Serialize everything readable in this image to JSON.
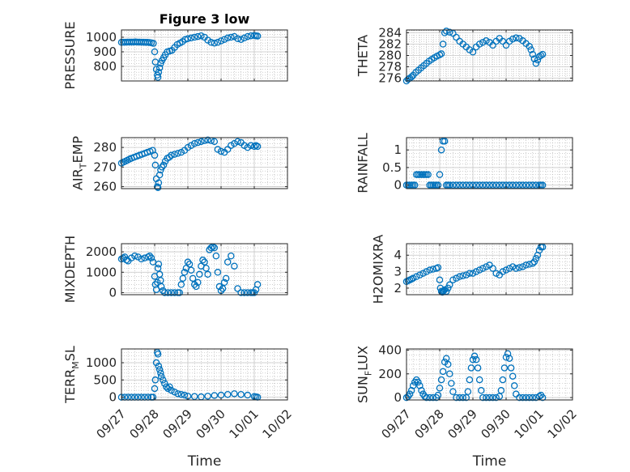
{
  "figure": {
    "title": "Figure 3 low",
    "xlabel": "Time"
  },
  "colors": {
    "marker": "#0072BD",
    "axes": "#262626",
    "grid": "#b0b0b0",
    "background": "#ffffff"
  },
  "chart_data": [
    {
      "type": "scatter",
      "title": "Figure 3 low",
      "ylabel": "PRESSURE",
      "ylim": [
        700,
        1050
      ],
      "yticks": [
        800,
        900,
        1000
      ],
      "xlim": [
        0,
        5
      ],
      "xticks": [
        "09/27",
        "09/28",
        "09/29",
        "09/30",
        "10/01",
        "10/02"
      ],
      "grid": true,
      "marker": "open-circle",
      "x": [
        0.0,
        0.06,
        0.12,
        0.18,
        0.24,
        0.3,
        0.36,
        0.42,
        0.48,
        0.54,
        0.6,
        0.66,
        0.72,
        0.78,
        0.84,
        0.9,
        0.96,
        1.0,
        1.02,
        1.05,
        1.08,
        1.1,
        1.12,
        1.15,
        1.18,
        1.22,
        1.27,
        1.32,
        1.38,
        1.45,
        1.52,
        1.6,
        1.68,
        1.76,
        1.84,
        1.92,
        2.0,
        2.1,
        2.2,
        2.3,
        2.4,
        2.5,
        2.6,
        2.7,
        2.8,
        2.9,
        3.0,
        3.1,
        3.2,
        3.3,
        3.4,
        3.5,
        3.6,
        3.7,
        3.8,
        3.9,
        4.0,
        4.05,
        4.1
      ],
      "y": [
        965,
        966,
        966,
        967,
        967,
        967,
        967,
        968,
        967,
        967,
        966,
        966,
        965,
        965,
        964,
        962,
        958,
        900,
        830,
        780,
        740,
        725,
        760,
        790,
        820,
        840,
        860,
        880,
        900,
        905,
        910,
        930,
        950,
        960,
        970,
        985,
        990,
        995,
        1000,
        1005,
        1010,
        1000,
        980,
        965,
        960,
        965,
        975,
        985,
        995,
        1000,
        1005,
        990,
        985,
        995,
        1005,
        1010,
        1012,
        1010,
        1008
      ]
    },
    {
      "type": "scatter",
      "ylabel": "THETA",
      "ylim": [
        275.5,
        284.5
      ],
      "yticks": [
        276,
        278,
        280,
        282,
        284
      ],
      "xlim": [
        0,
        5
      ],
      "xticks": [
        "09/27",
        "09/28",
        "09/29",
        "09/30",
        "10/01",
        "10/02"
      ],
      "grid": true,
      "marker": "open-circle",
      "x": [
        0.0,
        0.05,
        0.1,
        0.15,
        0.2,
        0.28,
        0.36,
        0.44,
        0.52,
        0.6,
        0.68,
        0.76,
        0.84,
        0.92,
        1.0,
        1.05,
        1.1,
        1.15,
        1.2,
        1.3,
        1.4,
        1.5,
        1.6,
        1.7,
        1.8,
        1.9,
        2.0,
        2.1,
        2.2,
        2.3,
        2.4,
        2.5,
        2.6,
        2.7,
        2.8,
        2.9,
        3.0,
        3.1,
        3.2,
        3.3,
        3.4,
        3.5,
        3.6,
        3.7,
        3.75,
        3.8,
        3.85,
        3.9,
        3.95,
        4.0,
        4.05,
        4.1
      ],
      "y": [
        275.5,
        275.8,
        276.0,
        276.2,
        276.5,
        277.0,
        277.4,
        277.8,
        278.2,
        278.6,
        279.0,
        279.3,
        279.6,
        279.9,
        280.1,
        280.3,
        282.0,
        284.0,
        284.3,
        284.1,
        283.9,
        283.2,
        282.5,
        282.0,
        281.5,
        281.0,
        280.6,
        281.5,
        282.0,
        282.3,
        282.6,
        282.3,
        281.8,
        282.5,
        283.0,
        282.5,
        281.8,
        282.5,
        282.9,
        283.1,
        283.0,
        282.6,
        282.1,
        281.6,
        281.0,
        280.2,
        279.4,
        278.6,
        279.2,
        279.8,
        280.0,
        280.2
      ]
    },
    {
      "type": "scatter",
      "ylabel": "AIR_TEMP",
      "ylim": [
        259,
        285
      ],
      "yticks": [
        260,
        270,
        280
      ],
      "xlim": [
        0,
        5
      ],
      "xticks": [
        "09/27",
        "09/28",
        "09/29",
        "09/30",
        "10/01",
        "10/02"
      ],
      "grid": true,
      "marker": "open-circle",
      "x": [
        0.0,
        0.06,
        0.12,
        0.18,
        0.24,
        0.3,
        0.38,
        0.46,
        0.54,
        0.62,
        0.7,
        0.78,
        0.86,
        0.94,
        1.0,
        1.02,
        1.05,
        1.08,
        1.1,
        1.12,
        1.15,
        1.18,
        1.22,
        1.27,
        1.32,
        1.38,
        1.44,
        1.5,
        1.6,
        1.7,
        1.8,
        1.9,
        2.0,
        2.1,
        2.2,
        2.3,
        2.4,
        2.5,
        2.6,
        2.7,
        2.8,
        2.9,
        3.0,
        3.1,
        3.2,
        3.3,
        3.4,
        3.5,
        3.6,
        3.7,
        3.8,
        3.9,
        4.0,
        4.05,
        4.1
      ],
      "y": [
        272,
        272.5,
        273,
        273.5,
        274,
        274.5,
        275,
        275.5,
        276,
        276.5,
        277,
        277.5,
        278,
        278.5,
        276,
        271,
        264,
        260,
        259.5,
        262,
        266,
        268.5,
        270,
        271,
        273,
        274.5,
        275,
        276,
        276.5,
        277,
        277.5,
        278.5,
        280,
        281,
        282,
        282.5,
        283,
        283.5,
        283.8,
        283.5,
        283,
        279,
        278,
        277.5,
        279,
        281,
        282,
        283,
        282.5,
        281,
        280,
        281,
        280.5,
        281,
        280.5
      ]
    },
    {
      "type": "scatter",
      "ylabel": "RAINFALL",
      "ylim": [
        -0.1,
        1.35
      ],
      "yticks": [
        0,
        0.5,
        1
      ],
      "xlim": [
        0,
        5
      ],
      "xticks": [
        "09/27",
        "09/28",
        "09/29",
        "09/30",
        "10/01",
        "10/02"
      ],
      "grid": true,
      "marker": "open-circle",
      "x": [
        0.0,
        0.05,
        0.1,
        0.15,
        0.2,
        0.25,
        0.3,
        0.35,
        0.4,
        0.45,
        0.5,
        0.55,
        0.6,
        0.65,
        0.7,
        0.75,
        0.8,
        0.85,
        0.9,
        0.95,
        1.0,
        1.05,
        1.1,
        1.15,
        1.2,
        1.25,
        1.3,
        1.4,
        1.5,
        1.6,
        1.7,
        1.8,
        1.9,
        2.0,
        2.1,
        2.2,
        2.3,
        2.4,
        2.5,
        2.6,
        2.7,
        2.8,
        2.9,
        3.0,
        3.1,
        3.2,
        3.3,
        3.4,
        3.5,
        3.6,
        3.7,
        3.8,
        3.9,
        4.0,
        4.05,
        4.1
      ],
      "y": [
        0,
        0,
        0,
        0,
        0,
        0,
        0.3,
        0.3,
        0.3,
        0.3,
        0.3,
        0.3,
        0.3,
        0.3,
        0,
        0,
        0,
        0,
        0,
        0,
        0.3,
        1.0,
        1.25,
        1.25,
        0,
        0,
        0,
        0,
        0,
        0,
        0,
        0,
        0,
        0,
        0,
        0,
        0,
        0,
        0,
        0,
        0,
        0,
        0,
        0,
        0,
        0,
        0,
        0,
        0,
        0,
        0,
        0,
        0,
        0,
        0,
        0
      ]
    },
    {
      "type": "scatter",
      "ylabel": "MIXDEPTH",
      "ylim": [
        -100,
        2400
      ],
      "yticks": [
        0,
        1000,
        2000
      ],
      "xlim": [
        0,
        5
      ],
      "xticks": [
        "09/27",
        "09/28",
        "09/29",
        "09/30",
        "10/01",
        "10/02"
      ],
      "grid": true,
      "marker": "open-circle",
      "x": [
        0.0,
        0.05,
        0.1,
        0.15,
        0.2,
        0.3,
        0.4,
        0.5,
        0.6,
        0.7,
        0.8,
        0.85,
        0.9,
        0.95,
        1.0,
        1.02,
        1.05,
        1.08,
        1.1,
        1.12,
        1.15,
        1.18,
        1.2,
        1.25,
        1.3,
        1.4,
        1.5,
        1.6,
        1.7,
        1.75,
        1.8,
        1.85,
        1.9,
        1.95,
        2.0,
        2.05,
        2.1,
        2.15,
        2.2,
        2.25,
        2.3,
        2.35,
        2.4,
        2.45,
        2.5,
        2.55,
        2.6,
        2.65,
        2.7,
        2.75,
        2.8,
        2.85,
        2.9,
        2.95,
        3.0,
        3.05,
        3.1,
        3.15,
        3.2,
        3.3,
        3.4,
        3.5,
        3.6,
        3.7,
        3.8,
        3.9,
        3.95,
        4.0,
        4.05,
        4.1
      ],
      "y": [
        1650,
        1700,
        1750,
        1600,
        1550,
        1700,
        1800,
        1750,
        1650,
        1700,
        1750,
        1800,
        1700,
        1500,
        800,
        400,
        150,
        500,
        1200,
        1400,
        900,
        600,
        300,
        100,
        0,
        0,
        0,
        0,
        0,
        0,
        400,
        700,
        1000,
        1200,
        1500,
        1400,
        1100,
        700,
        400,
        300,
        500,
        900,
        1300,
        1600,
        1500,
        1200,
        900,
        2100,
        2200,
        2250,
        2200,
        1800,
        1000,
        300,
        100,
        200,
        500,
        700,
        1500,
        1800,
        1300,
        200,
        0,
        0,
        0,
        0,
        0,
        0,
        150,
        400
      ]
    },
    {
      "type": "scatter",
      "ylabel": "H2OMIXRA",
      "ylim": [
        1.6,
        4.7
      ],
      "yticks": [
        2,
        3,
        4
      ],
      "xlim": [
        0,
        5
      ],
      "xticks": [
        "09/27",
        "09/28",
        "09/29",
        "09/30",
        "10/01",
        "10/02"
      ],
      "grid": true,
      "marker": "open-circle",
      "x": [
        0.0,
        0.05,
        0.1,
        0.15,
        0.2,
        0.3,
        0.4,
        0.5,
        0.6,
        0.7,
        0.8,
        0.9,
        0.95,
        1.0,
        1.02,
        1.05,
        1.08,
        1.1,
        1.12,
        1.15,
        1.2,
        1.25,
        1.3,
        1.4,
        1.5,
        1.6,
        1.7,
        1.8,
        1.9,
        2.0,
        2.1,
        2.2,
        2.3,
        2.4,
        2.5,
        2.6,
        2.7,
        2.8,
        2.9,
        3.0,
        3.1,
        3.2,
        3.3,
        3.4,
        3.5,
        3.6,
        3.7,
        3.8,
        3.85,
        3.9,
        3.95,
        4.0,
        4.05,
        4.1
      ],
      "y": [
        2.4,
        2.45,
        2.5,
        2.55,
        2.6,
        2.7,
        2.8,
        2.9,
        3.0,
        3.1,
        3.15,
        3.2,
        3.25,
        2.5,
        2.0,
        1.8,
        1.75,
        1.8,
        1.85,
        1.9,
        1.8,
        2.0,
        2.2,
        2.5,
        2.6,
        2.7,
        2.75,
        2.8,
        2.9,
        2.9,
        3.0,
        3.1,
        3.2,
        3.3,
        3.4,
        3.2,
        2.9,
        2.8,
        3.0,
        3.1,
        3.2,
        3.3,
        3.2,
        3.25,
        3.3,
        3.4,
        3.45,
        3.5,
        3.6,
        3.8,
        4.0,
        4.3,
        4.5,
        4.5
      ]
    },
    {
      "type": "scatter",
      "ylabel": "TERR_MSL",
      "ylim": [
        -80,
        1400
      ],
      "yticks": [
        0,
        500,
        1000
      ],
      "xlim": [
        0,
        5
      ],
      "xticks": [
        "09/27",
        "09/28",
        "09/29",
        "09/30",
        "10/01",
        "10/02"
      ],
      "grid": true,
      "marker": "open-circle",
      "x": [
        0.0,
        0.1,
        0.2,
        0.3,
        0.4,
        0.5,
        0.6,
        0.7,
        0.8,
        0.9,
        0.95,
        1.0,
        1.02,
        1.05,
        1.08,
        1.1,
        1.12,
        1.15,
        1.18,
        1.2,
        1.25,
        1.3,
        1.35,
        1.4,
        1.45,
        1.5,
        1.6,
        1.7,
        1.8,
        1.9,
        2.0,
        2.2,
        2.4,
        2.6,
        2.8,
        3.0,
        3.2,
        3.4,
        3.6,
        3.8,
        4.0,
        4.05,
        4.1
      ],
      "y": [
        0,
        0,
        0,
        0,
        0,
        0,
        0,
        0,
        0,
        0,
        0,
        250,
        500,
        1000,
        1300,
        1250,
        900,
        800,
        700,
        600,
        500,
        400,
        300,
        250,
        300,
        200,
        150,
        100,
        80,
        60,
        30,
        20,
        10,
        30,
        50,
        60,
        80,
        100,
        80,
        60,
        20,
        10,
        0
      ]
    },
    {
      "type": "scatter",
      "ylabel": "SUN_FLUX",
      "ylim": [
        -20,
        410
      ],
      "yticks": [
        0,
        200,
        400
      ],
      "xlim": [
        0,
        5
      ],
      "xticks": [
        "09/27",
        "09/28",
        "09/29",
        "09/30",
        "10/01",
        "10/02"
      ],
      "grid": true,
      "marker": "open-circle",
      "x": [
        0.0,
        0.05,
        0.1,
        0.15,
        0.2,
        0.25,
        0.3,
        0.35,
        0.4,
        0.45,
        0.5,
        0.55,
        0.6,
        0.7,
        0.8,
        0.9,
        0.95,
        1.0,
        1.05,
        1.1,
        1.15,
        1.2,
        1.25,
        1.3,
        1.35,
        1.4,
        1.5,
        1.6,
        1.7,
        1.8,
        1.85,
        1.9,
        1.95,
        2.0,
        2.05,
        2.1,
        2.15,
        2.2,
        2.25,
        2.3,
        2.4,
        2.5,
        2.6,
        2.7,
        2.8,
        2.85,
        2.9,
        2.95,
        3.0,
        3.05,
        3.1,
        3.15,
        3.2,
        3.25,
        3.3,
        3.4,
        3.5,
        3.6,
        3.7,
        3.8,
        3.9,
        4.0,
        4.05,
        4.1
      ],
      "y": [
        0,
        10,
        30,
        60,
        100,
        130,
        150,
        130,
        100,
        60,
        30,
        10,
        0,
        0,
        0,
        0,
        20,
        80,
        150,
        220,
        300,
        330,
        280,
        200,
        120,
        50,
        0,
        0,
        0,
        0,
        50,
        150,
        250,
        320,
        350,
        320,
        250,
        150,
        60,
        0,
        0,
        0,
        0,
        0,
        10,
        60,
        150,
        250,
        340,
        370,
        330,
        250,
        180,
        100,
        30,
        0,
        0,
        0,
        0,
        0,
        0,
        10,
        20,
        0
      ]
    }
  ]
}
